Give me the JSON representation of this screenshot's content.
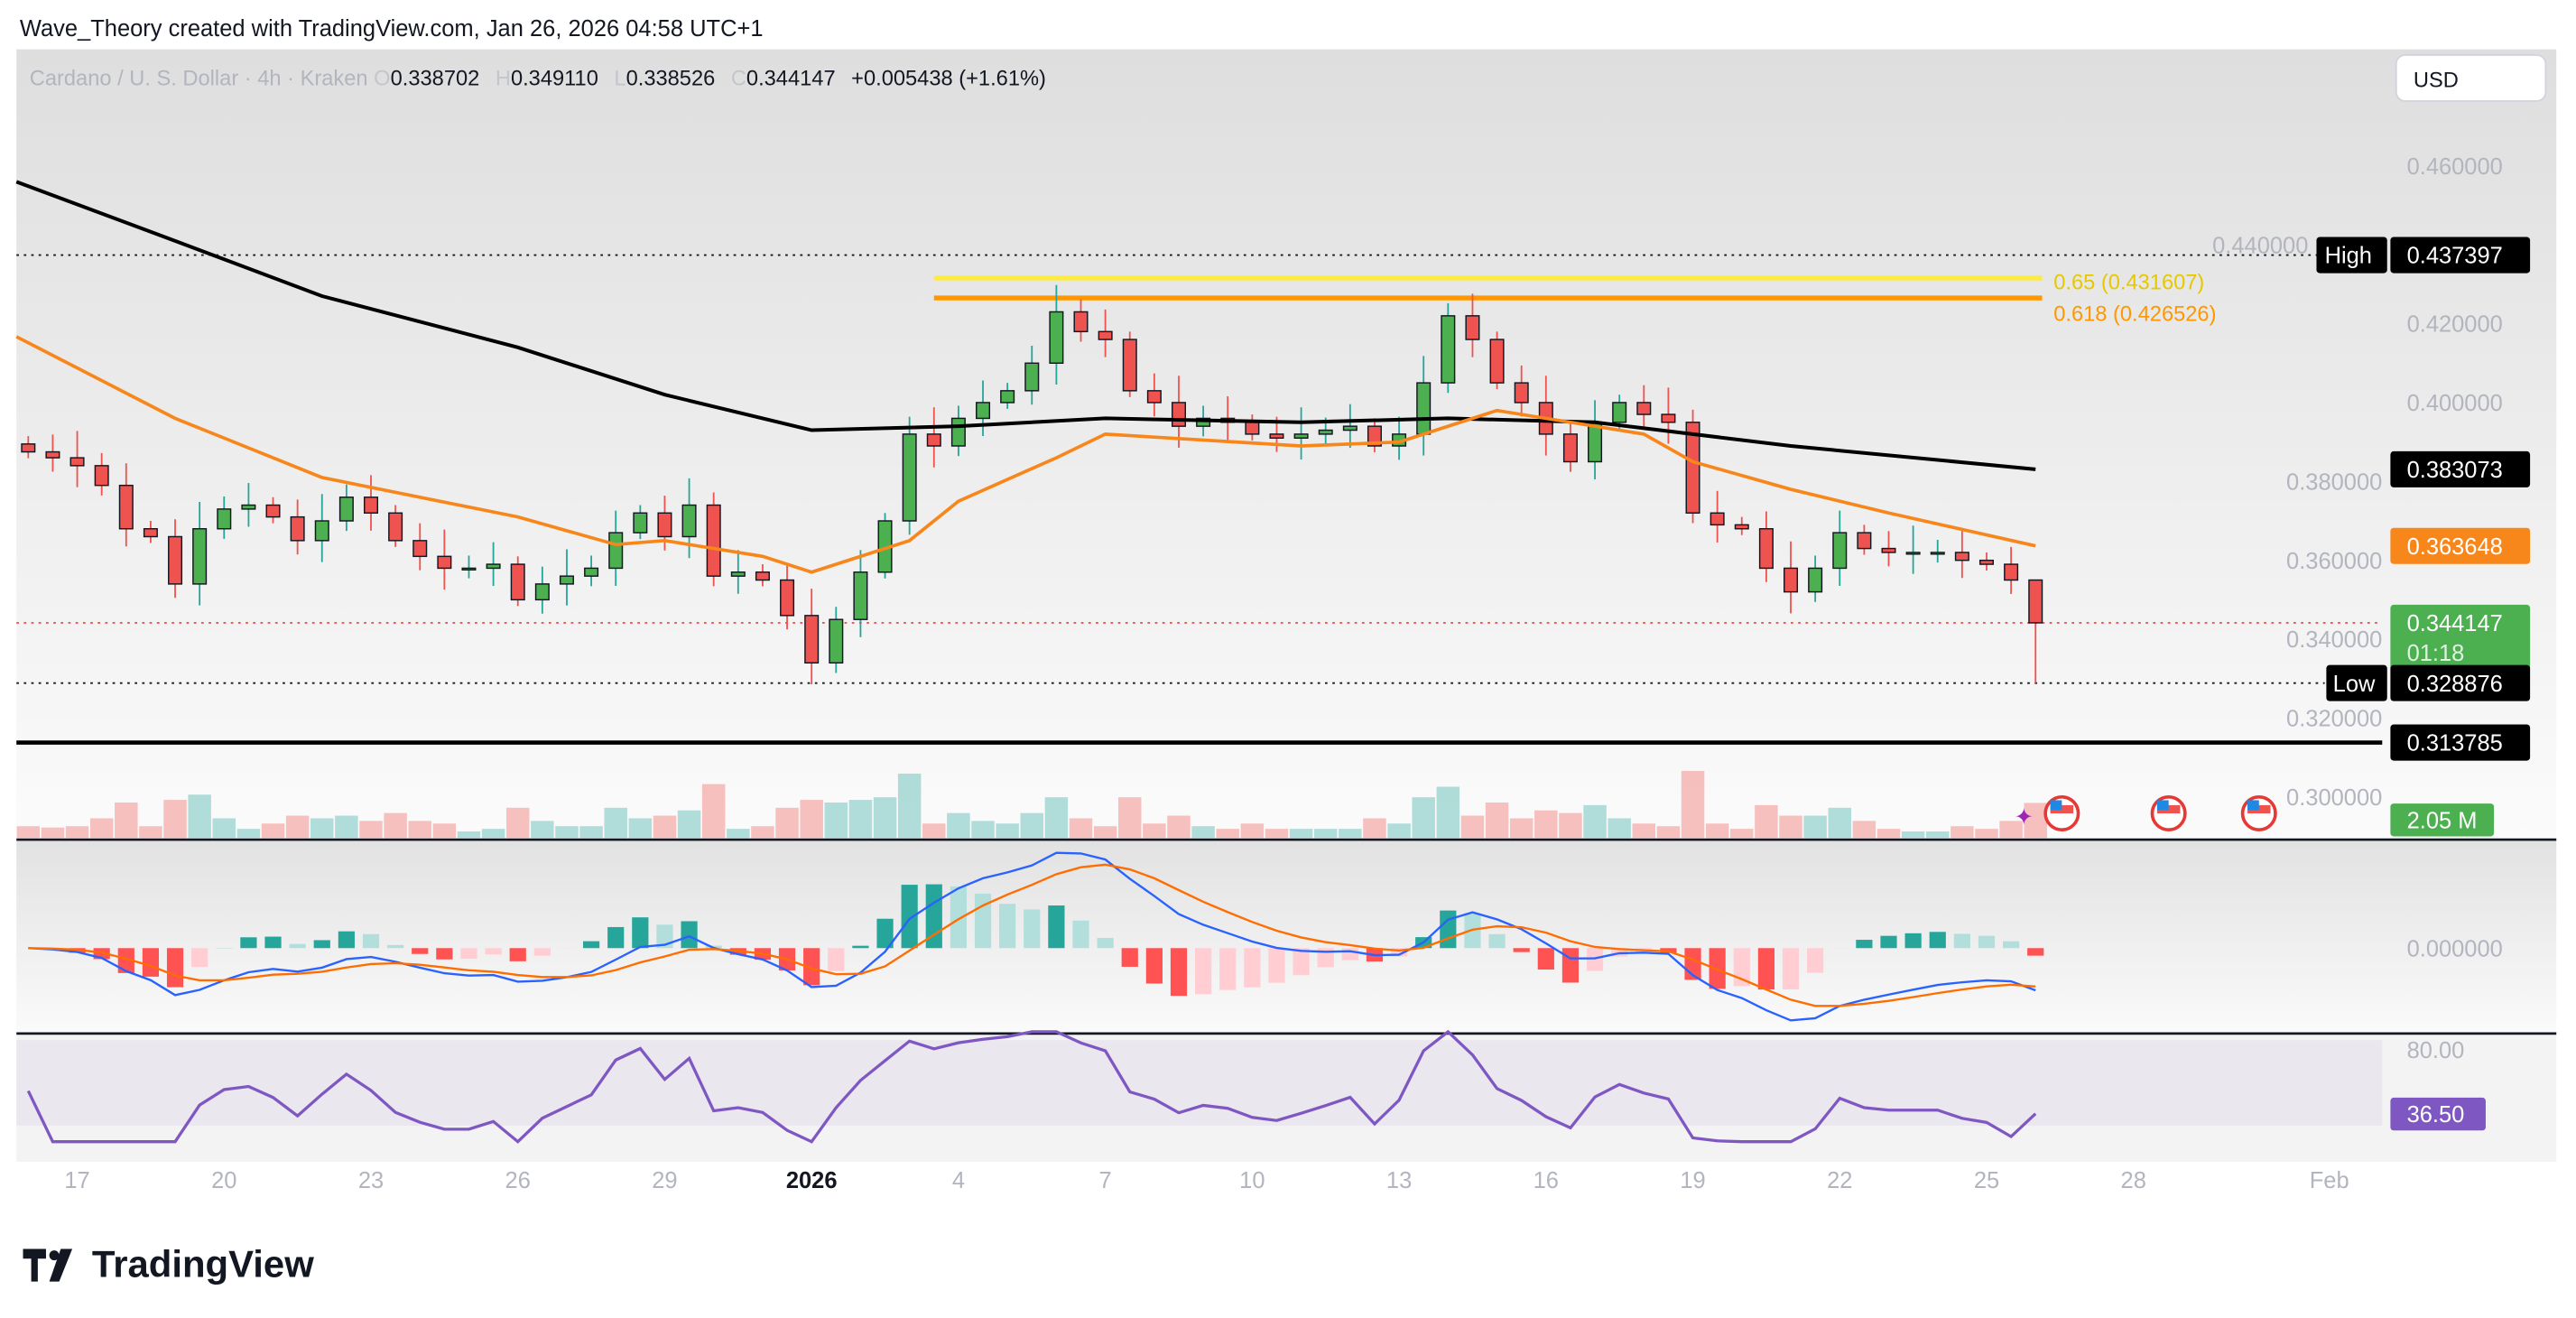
{
  "caption": "Wave_Theory created with TradingView.com, Jan 26, 2026 04:58 UTC+1",
  "legend": {
    "symbol": "Cardano / U. S. Dollar · 4h · Kraken",
    "o_key": "O",
    "open": "0.338702",
    "h_key": "H",
    "high": "0.349110",
    "l_key": "L",
    "low": "0.338526",
    "c_key": "C",
    "close": "0.344147",
    "change": "+0.005438 (+1.61%)"
  },
  "currency_button": "USD",
  "logo_text": "TradingView",
  "colors": {
    "up": "#26a69a",
    "down": "#ef5350",
    "ema_fast": "#f7861b",
    "ema_slow": "#000000",
    "fib_065": "#ffeb3b",
    "fib_0618": "#ff9800",
    "macd": "#2962ff",
    "signal": "#ff6d00",
    "rsi": "#7e57c2",
    "price_label": "#4caf50"
  },
  "chart_data": {
    "type": "candlestick",
    "price_axis": {
      "range": [
        0.295,
        0.475
      ],
      "ticks": [
        "0.460000",
        "0.440000",
        "0.420000",
        "0.400000",
        "0.380000",
        "0.360000",
        "0.340000",
        "0.320000",
        "0.300000"
      ]
    },
    "time_axis": {
      "ticks": [
        {
          "date": "2025-12-17",
          "label": "17"
        },
        {
          "date": "2025-12-20",
          "label": "20"
        },
        {
          "date": "2025-12-23",
          "label": "23"
        },
        {
          "date": "2025-12-26",
          "label": "26"
        },
        {
          "date": "2025-12-29",
          "label": "29"
        },
        {
          "date": "2026-01-01",
          "label": "2026",
          "bold": true
        },
        {
          "date": "2026-01-04",
          "label": "4"
        },
        {
          "date": "2026-01-07",
          "label": "7"
        },
        {
          "date": "2026-01-10",
          "label": "10"
        },
        {
          "date": "2026-01-13",
          "label": "13"
        },
        {
          "date": "2026-01-16",
          "label": "16"
        },
        {
          "date": "2026-01-19",
          "label": "19"
        },
        {
          "date": "2026-01-22",
          "label": "22"
        },
        {
          "date": "2026-01-25",
          "label": "25"
        },
        {
          "date": "2026-01-28",
          "label": "28"
        },
        {
          "date": "2026-02-01",
          "label": "Feb"
        }
      ]
    },
    "closes": [
      [
        "2025-12-16 00:00",
        0.3875
      ],
      [
        "2025-12-16 12:00",
        0.386
      ],
      [
        "2025-12-17 00:00",
        0.384
      ],
      [
        "2025-12-17 12:00",
        0.379
      ],
      [
        "2025-12-18 00:00",
        0.368
      ],
      [
        "2025-12-18 12:00",
        0.366
      ],
      [
        "2025-12-19 00:00",
        0.354
      ],
      [
        "2025-12-19 12:00",
        0.368
      ],
      [
        "2025-12-20 00:00",
        0.373
      ],
      [
        "2025-12-20 12:00",
        0.374
      ],
      [
        "2025-12-21 00:00",
        0.371
      ],
      [
        "2025-12-21 12:00",
        0.365
      ],
      [
        "2025-12-22 00:00",
        0.37
      ],
      [
        "2025-12-22 12:00",
        0.376
      ],
      [
        "2025-12-23 00:00",
        0.372
      ],
      [
        "2025-12-23 12:00",
        0.365
      ],
      [
        "2025-12-24 00:00",
        0.361
      ],
      [
        "2025-12-24 12:00",
        0.358
      ],
      [
        "2025-12-25 00:00",
        0.358
      ],
      [
        "2025-12-25 12:00",
        0.359
      ],
      [
        "2025-12-26 00:00",
        0.35
      ],
      [
        "2025-12-26 12:00",
        0.354
      ],
      [
        "2025-12-27 00:00",
        0.356
      ],
      [
        "2025-12-27 12:00",
        0.358
      ],
      [
        "2025-12-28 00:00",
        0.367
      ],
      [
        "2025-12-28 12:00",
        0.372
      ],
      [
        "2025-12-29 00:00",
        0.366
      ],
      [
        "2025-12-29 12:00",
        0.374
      ],
      [
        "2025-12-30 00:00",
        0.356
      ],
      [
        "2025-12-30 12:00",
        0.357
      ],
      [
        "2025-12-31 00:00",
        0.355
      ],
      [
        "2025-12-31 12:00",
        0.346
      ],
      [
        "2026-01-01 00:00",
        0.334
      ],
      [
        "2026-01-01 12:00",
        0.345
      ],
      [
        "2026-01-02 00:00",
        0.357
      ],
      [
        "2026-01-02 12:00",
        0.37
      ],
      [
        "2026-01-03 00:00",
        0.392
      ],
      [
        "2026-01-03 12:00",
        0.389
      ],
      [
        "2026-01-04 00:00",
        0.396
      ],
      [
        "2026-01-04 12:00",
        0.4
      ],
      [
        "2026-01-05 00:00",
        0.403
      ],
      [
        "2026-01-05 12:00",
        0.41
      ],
      [
        "2026-01-06 00:00",
        0.423
      ],
      [
        "2026-01-06 12:00",
        0.418
      ],
      [
        "2026-01-07 00:00",
        0.416
      ],
      [
        "2026-01-07 12:00",
        0.403
      ],
      [
        "2026-01-08 00:00",
        0.4
      ],
      [
        "2026-01-08 12:00",
        0.394
      ],
      [
        "2026-01-09 00:00",
        0.396
      ],
      [
        "2026-01-09 12:00",
        0.395
      ],
      [
        "2026-01-10 00:00",
        0.392
      ],
      [
        "2026-01-10 12:00",
        0.391
      ],
      [
        "2026-01-11 00:00",
        0.392
      ],
      [
        "2026-01-11 12:00",
        0.393
      ],
      [
        "2026-01-12 00:00",
        0.394
      ],
      [
        "2026-01-12 12:00",
        0.389
      ],
      [
        "2026-01-13 00:00",
        0.392
      ],
      [
        "2026-01-13 12:00",
        0.405
      ],
      [
        "2026-01-14 00:00",
        0.422
      ],
      [
        "2026-01-14 12:00",
        0.416
      ],
      [
        "2026-01-15 00:00",
        0.405
      ],
      [
        "2026-01-15 12:00",
        0.4
      ],
      [
        "2026-01-16 00:00",
        0.392
      ],
      [
        "2026-01-16 12:00",
        0.385
      ],
      [
        "2026-01-17 00:00",
        0.395
      ],
      [
        "2026-01-17 12:00",
        0.4
      ],
      [
        "2026-01-18 00:00",
        0.397
      ],
      [
        "2026-01-18 12:00",
        0.395
      ],
      [
        "2026-01-19 00:00",
        0.372
      ],
      [
        "2026-01-19 12:00",
        0.369
      ],
      [
        "2026-01-20 00:00",
        0.368
      ],
      [
        "2026-01-20 12:00",
        0.358
      ],
      [
        "2026-01-21 00:00",
        0.352
      ],
      [
        "2026-01-21 12:00",
        0.358
      ],
      [
        "2026-01-22 00:00",
        0.367
      ],
      [
        "2026-01-22 12:00",
        0.363
      ],
      [
        "2026-01-23 00:00",
        0.362
      ],
      [
        "2026-01-23 12:00",
        0.362
      ],
      [
        "2026-01-24 00:00",
        0.362
      ],
      [
        "2026-01-24 12:00",
        0.36
      ],
      [
        "2026-01-25 00:00",
        0.359
      ],
      [
        "2026-01-25 12:00",
        0.355
      ],
      [
        "2026-01-26 00:00",
        0.344147
      ]
    ],
    "ema_slow": [
      [
        "2025-12-16 00:00",
        0.456
      ],
      [
        "2025-12-19 00:00",
        0.441
      ],
      [
        "2025-12-22 00:00",
        0.427
      ],
      [
        "2025-12-26 00:00",
        0.414
      ],
      [
        "2025-12-29 00:00",
        0.402
      ],
      [
        "2026-01-01 00:00",
        0.393
      ],
      [
        "2026-01-04 00:00",
        0.394
      ],
      [
        "2026-01-07 00:00",
        0.396
      ],
      [
        "2026-01-11 00:00",
        0.395
      ],
      [
        "2026-01-14 00:00",
        0.396
      ],
      [
        "2026-01-17 00:00",
        0.395
      ],
      [
        "2026-01-21 00:00",
        0.389
      ],
      [
        "2026-01-26 00:00",
        0.383073
      ]
    ],
    "ema_fast": [
      [
        "2025-12-16 00:00",
        0.4167
      ],
      [
        "2025-12-19 00:00",
        0.396
      ],
      [
        "2025-12-22 00:00",
        0.381
      ],
      [
        "2025-12-26 00:00",
        0.371
      ],
      [
        "2025-12-28 00:00",
        0.364
      ],
      [
        "2025-12-29 00:00",
        0.365
      ],
      [
        "2025-12-31 00:00",
        0.361
      ],
      [
        "2026-01-01 00:00",
        0.357
      ],
      [
        "2026-01-03 00:00",
        0.365
      ],
      [
        "2026-01-04 00:00",
        0.375
      ],
      [
        "2026-01-06 00:00",
        0.386
      ],
      [
        "2026-01-07 00:00",
        0.392
      ],
      [
        "2026-01-11 00:00",
        0.389
      ],
      [
        "2026-01-13 00:00",
        0.39
      ],
      [
        "2026-01-15 00:00",
        0.398
      ],
      [
        "2026-01-18 00:00",
        0.392
      ],
      [
        "2026-01-19 00:00",
        0.385
      ],
      [
        "2026-01-21 00:00",
        0.378
      ],
      [
        "2026-01-23 00:00",
        0.372
      ],
      [
        "2026-01-26 00:00",
        0.363648
      ]
    ],
    "levels": {
      "high": {
        "label": "High",
        "value": 0.437397,
        "text": "0.437397"
      },
      "low": {
        "label": "Low",
        "value": 0.328876,
        "text": "0.328876"
      },
      "support": {
        "value": 0.313785,
        "text": "0.313785"
      },
      "ema_slow_last": {
        "value": 0.383073,
        "text": "0.383073"
      },
      "ema_fast_last": {
        "value": 0.363648,
        "text": "0.363648"
      },
      "last_price": {
        "value": 0.344147,
        "text": "0.344147",
        "countdown": "01:18"
      },
      "fib_065": {
        "value": 0.431607,
        "text": "0.65 (0.431607)",
        "from": "2026-01-03 12:00"
      },
      "fib_0618": {
        "value": 0.426526,
        "text": "0.618 (0.426526)",
        "from": "2026-01-03 12:00"
      }
    },
    "volume_label": "2.05 M",
    "macd": {
      "zero_label": "0.000000"
    },
    "rsi": {
      "top_label": "80.00",
      "value_label": "36.50"
    }
  }
}
